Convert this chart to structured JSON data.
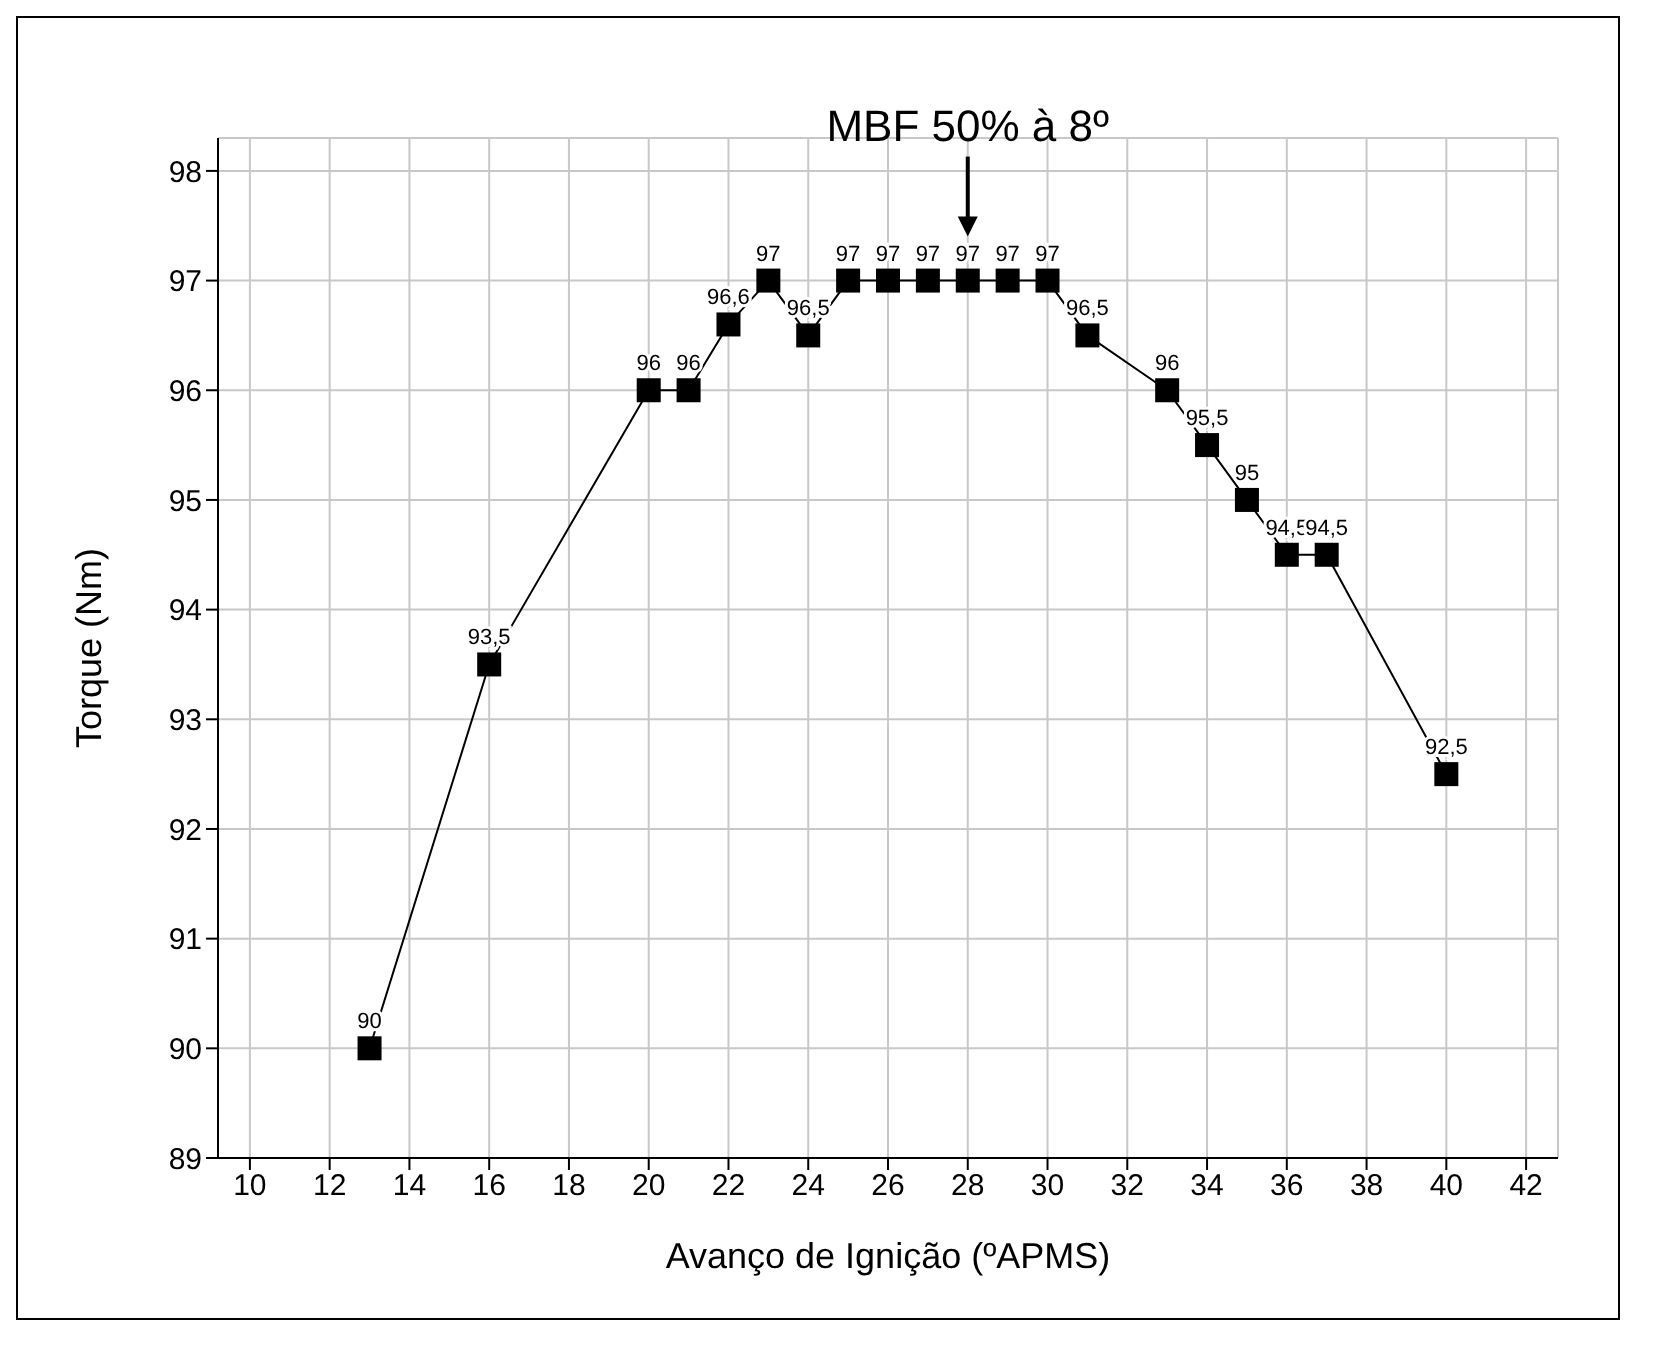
{
  "chart_data": {
    "type": "line",
    "xlabel": "Avanço de Ignição (ºAPMS)",
    "ylabel": "Torque (Nm)",
    "x": [
      13,
      16,
      20,
      21,
      22,
      23,
      24,
      25,
      26,
      27,
      28,
      29,
      30,
      31,
      33,
      34,
      35,
      36,
      37,
      40
    ],
    "series": [
      {
        "color": "#000000",
        "values": [
          90,
          93.5,
          96,
          96,
          96.6,
          97,
          96.5,
          97,
          97,
          97,
          97,
          97,
          97,
          96.5,
          96,
          95.5,
          95,
          94.5,
          94.5,
          92.5
        ],
        "value_labels": [
          "90",
          "93,5",
          "96",
          "96",
          "96,6",
          "97",
          "96,5",
          "97",
          "97",
          "97",
          "97",
          "97",
          "97",
          "96,5",
          "96",
          "95,5",
          "95",
          "94,5",
          "94,5",
          "92,5"
        ]
      }
    ],
    "xlim": [
      9.2,
      42.8
    ],
    "xticks": [
      10,
      12,
      14,
      16,
      18,
      20,
      22,
      24,
      26,
      28,
      30,
      32,
      34,
      36,
      38,
      40,
      42
    ],
    "ylim": [
      89,
      98.3
    ],
    "yticks": [
      89,
      90,
      91,
      92,
      93,
      94,
      95,
      96,
      97,
      98
    ],
    "grid": true,
    "marker": "square",
    "line_style": "solid",
    "annotations": [
      {
        "text": "MBF 50% à 8º",
        "x": 28,
        "y": 97
      }
    ]
  }
}
